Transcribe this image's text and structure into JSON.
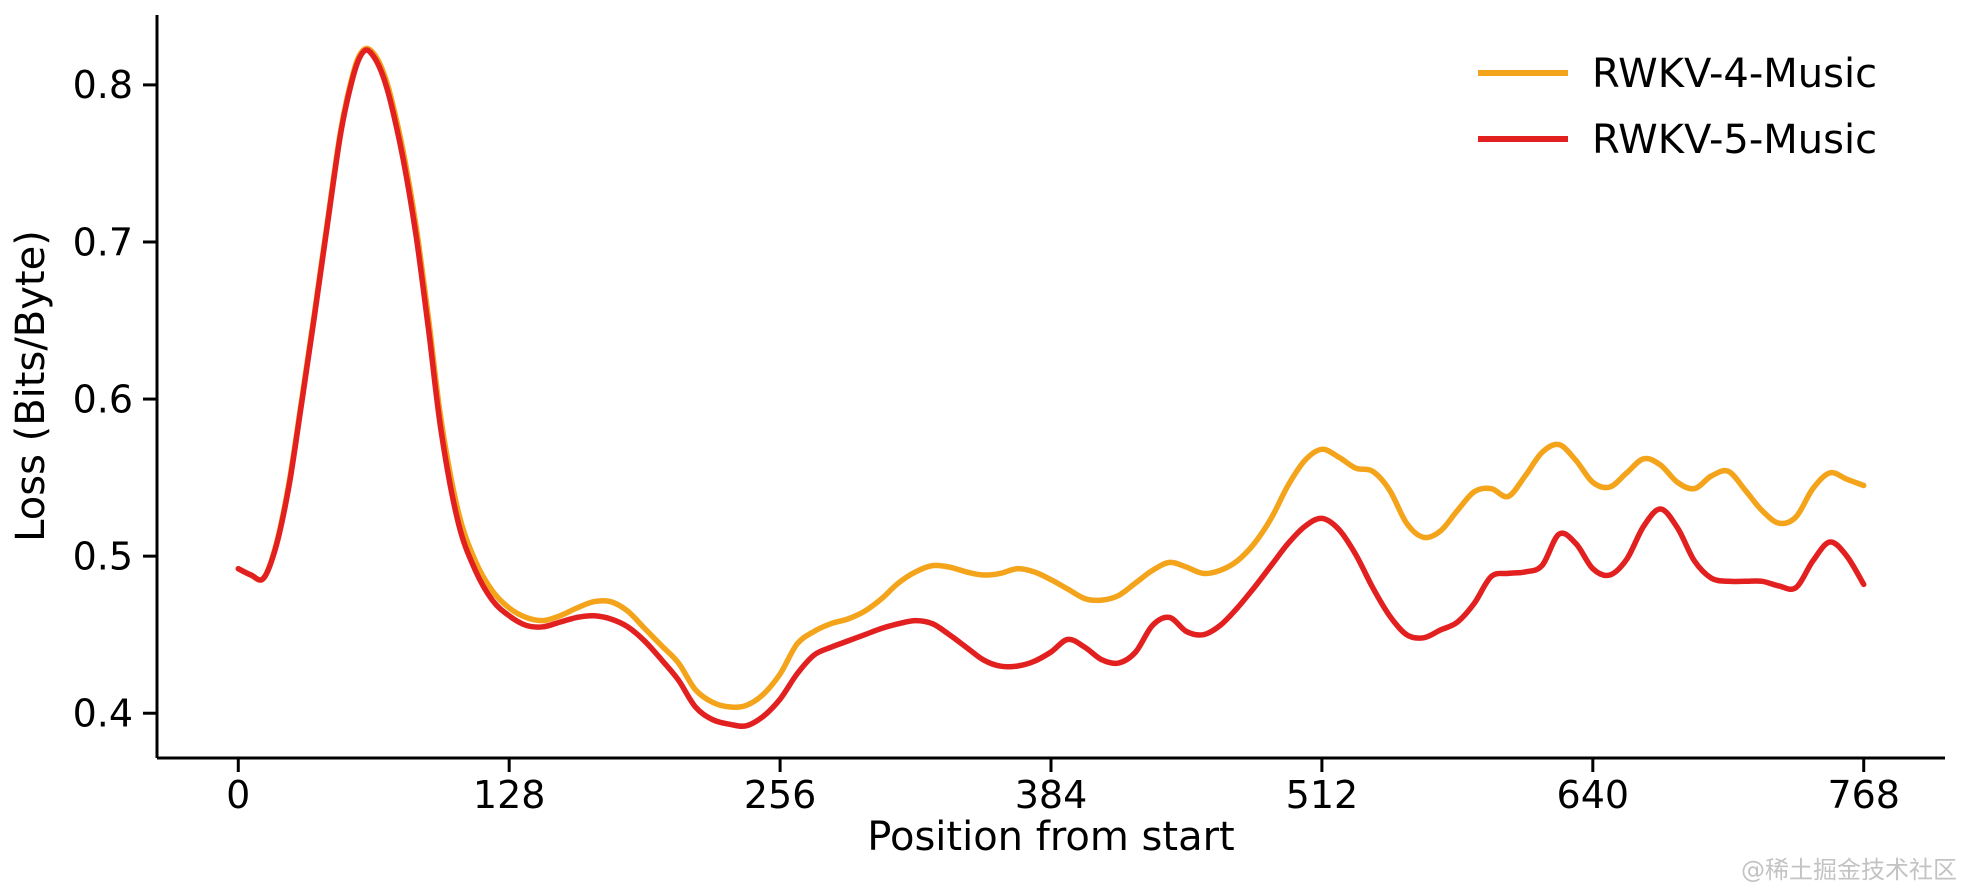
{
  "watermark": "@稀土掘金技术社区",
  "colors": {
    "background": "#ffffff",
    "axis": "#000000",
    "text": "#000000",
    "watermark": "#c3c3c3",
    "rwkv4": "#F4A41B",
    "rwkv5": "#E32020"
  },
  "chart_data": {
    "type": "line",
    "title": "",
    "xlabel": "Position from start",
    "ylabel": "Loss (Bits/Byte)",
    "grid": false,
    "legend_position": "upper right",
    "xlim": [
      -38.4,
      806.4
    ],
    "ylim": [
      0.3715,
      0.8445
    ],
    "x_tick_values": [
      0,
      128,
      256,
      384,
      512,
      640,
      768
    ],
    "x_tick_labels": [
      "0",
      "128",
      "256",
      "384",
      "512",
      "640",
      "768"
    ],
    "y_tick_values": [
      0.4,
      0.5,
      0.6,
      0.7,
      0.8
    ],
    "y_tick_labels": [
      "0.4",
      "0.5",
      "0.6",
      "0.7",
      "0.8"
    ],
    "x": [
      0,
      6,
      12,
      18,
      24,
      30,
      36,
      42,
      48,
      52,
      56,
      60,
      64,
      68,
      72,
      78,
      84,
      90,
      96,
      104,
      112,
      120,
      128,
      136,
      144,
      152,
      160,
      168,
      176,
      184,
      192,
      200,
      208,
      216,
      224,
      232,
      240,
      248,
      256,
      264,
      272,
      280,
      288,
      296,
      304,
      312,
      320,
      328,
      336,
      344,
      352,
      360,
      368,
      376,
      384,
      392,
      400,
      408,
      416,
      424,
      432,
      440,
      448,
      456,
      464,
      472,
      480,
      488,
      496,
      504,
      512,
      520,
      528,
      536,
      544,
      552,
      560,
      568,
      576,
      584,
      592,
      600,
      608,
      616,
      624,
      632,
      640,
      648,
      656,
      664,
      672,
      680,
      688,
      696,
      704,
      712,
      720,
      728,
      736,
      744,
      752,
      760,
      768
    ],
    "series": [
      {
        "name": "RWKV-4-Music",
        "color": "#F4A41B",
        "values": [
          0.492,
          0.488,
          0.486,
          0.508,
          0.547,
          0.6,
          0.655,
          0.712,
          0.768,
          0.795,
          0.815,
          0.823,
          0.82,
          0.81,
          0.793,
          0.757,
          0.71,
          0.65,
          0.585,
          0.528,
          0.497,
          0.478,
          0.467,
          0.461,
          0.459,
          0.462,
          0.467,
          0.471,
          0.471,
          0.465,
          0.454,
          0.443,
          0.432,
          0.415,
          0.407,
          0.404,
          0.405,
          0.412,
          0.425,
          0.444,
          0.452,
          0.457,
          0.46,
          0.465,
          0.473,
          0.483,
          0.49,
          0.494,
          0.493,
          0.49,
          0.488,
          0.489,
          0.492,
          0.49,
          0.485,
          0.479,
          0.473,
          0.472,
          0.475,
          0.483,
          0.491,
          0.496,
          0.493,
          0.489,
          0.491,
          0.497,
          0.508,
          0.524,
          0.545,
          0.561,
          0.568,
          0.563,
          0.556,
          0.554,
          0.542,
          0.521,
          0.512,
          0.516,
          0.529,
          0.541,
          0.543,
          0.538,
          0.551,
          0.566,
          0.571,
          0.561,
          0.547,
          0.544,
          0.553,
          0.562,
          0.558,
          0.547,
          0.543,
          0.551,
          0.554,
          0.542,
          0.529,
          0.521,
          0.525,
          0.543,
          0.553,
          0.549,
          0.545
        ]
      },
      {
        "name": "RWKV-5-Music",
        "color": "#E32020",
        "values": [
          0.492,
          0.488,
          0.486,
          0.507,
          0.545,
          0.598,
          0.653,
          0.71,
          0.766,
          0.793,
          0.813,
          0.822,
          0.818,
          0.807,
          0.789,
          0.752,
          0.704,
          0.643,
          0.578,
          0.521,
          0.491,
          0.472,
          0.462,
          0.456,
          0.455,
          0.458,
          0.461,
          0.462,
          0.46,
          0.455,
          0.446,
          0.434,
          0.421,
          0.404,
          0.396,
          0.393,
          0.392,
          0.398,
          0.409,
          0.425,
          0.437,
          0.442,
          0.446,
          0.45,
          0.454,
          0.457,
          0.459,
          0.457,
          0.45,
          0.442,
          0.434,
          0.43,
          0.43,
          0.433,
          0.439,
          0.447,
          0.442,
          0.434,
          0.432,
          0.439,
          0.456,
          0.461,
          0.452,
          0.45,
          0.456,
          0.467,
          0.48,
          0.494,
          0.508,
          0.519,
          0.524,
          0.517,
          0.501,
          0.48,
          0.462,
          0.45,
          0.448,
          0.453,
          0.458,
          0.47,
          0.487,
          0.489,
          0.49,
          0.494,
          0.514,
          0.508,
          0.492,
          0.488,
          0.498,
          0.519,
          0.53,
          0.518,
          0.497,
          0.486,
          0.484,
          0.484,
          0.484,
          0.481,
          0.48,
          0.497,
          0.509,
          0.5,
          0.482
        ]
      }
    ]
  }
}
